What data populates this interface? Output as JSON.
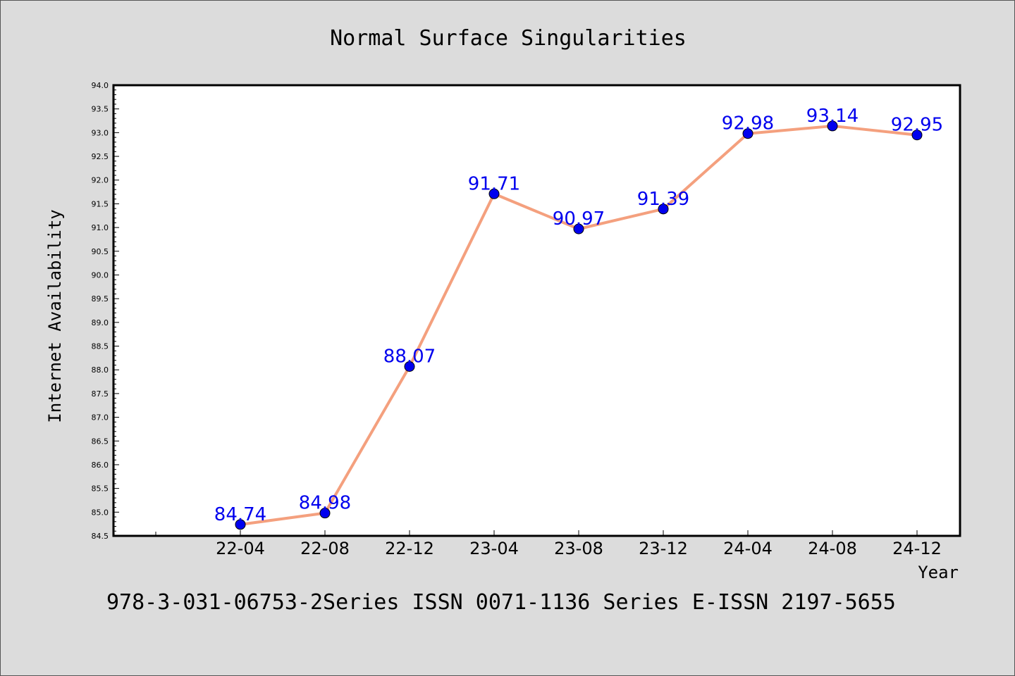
{
  "chart_data": {
    "type": "line",
    "title": "Normal Surface Singularities",
    "xlabel": "Year",
    "ylabel": "Internet Availability",
    "categories": [
      "22-04",
      "22-08",
      "22-12",
      "23-04",
      "23-08",
      "23-12",
      "24-04",
      "24-08",
      "24-12"
    ],
    "series": [
      {
        "values": [
          84.74,
          84.98,
          88.07,
          91.71,
          90.97,
          91.39,
          92.98,
          93.14,
          92.95
        ],
        "data_labels": [
          "84.74",
          "84.98",
          "88.07",
          "91.71",
          "90.97",
          "91.39",
          "92.98",
          "93.14",
          "92.95"
        ],
        "line_color": "#f4a07e",
        "marker_color": "#0000ee",
        "label_color": "#0000ee"
      }
    ],
    "ylim": [
      84.5,
      94.0
    ],
    "yticks": [
      "84.5",
      "85.0",
      "85.5",
      "86.0",
      "86.5",
      "87.0",
      "87.5",
      "88.0",
      "88.5",
      "89.0",
      "89.5",
      "90.0",
      "90.5",
      "91.0",
      "91.5",
      "92.0",
      "92.5",
      "93.0",
      "93.5",
      "94.0"
    ],
    "grid": false,
    "legend": "none",
    "footer": "978-3-031-06753-2Series ISSN 0071-1136 Series E-ISSN 2197-5655"
  }
}
